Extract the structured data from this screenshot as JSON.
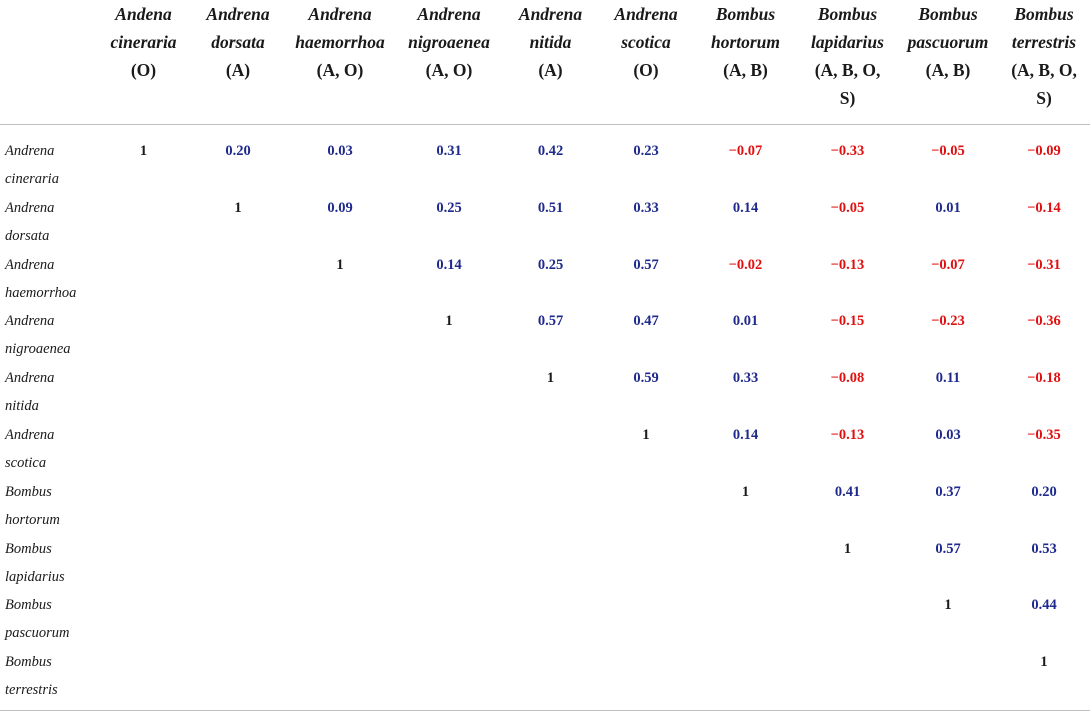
{
  "columns": [
    {
      "name_line1": "Andena",
      "name_line2": "cineraria",
      "codes": "(O)"
    },
    {
      "name_line1": "Andrena",
      "name_line2": "dorsata",
      "codes": "(A)"
    },
    {
      "name_line1": "Andrena",
      "name_line2": "haemorrhoa",
      "codes": "(A, O)"
    },
    {
      "name_line1": "Andrena",
      "name_line2": "nigroaenea",
      "codes": "(A, O)"
    },
    {
      "name_line1": "Andrena",
      "name_line2": "nitida",
      "codes": "(A)"
    },
    {
      "name_line1": "Andrena",
      "name_line2": "scotica",
      "codes": "(O)"
    },
    {
      "name_line1": "Bombus",
      "name_line2": "hortorum",
      "codes": "(A, B)"
    },
    {
      "name_line1": "Bombus",
      "name_line2": "lapidarius",
      "codes": "(A, B, O,",
      "codes2": "S)"
    },
    {
      "name_line1": "Bombus",
      "name_line2": "pascuorum",
      "codes": "(A, B)"
    },
    {
      "name_line1": "Bombus",
      "name_line2": "terrestris",
      "codes": "(A, B, O,",
      "codes2": "S)"
    }
  ],
  "rows": [
    {
      "line1": "Andrena",
      "line2": "cineraria",
      "values": [
        "1",
        "0.20",
        "0.03",
        "0.31",
        "0.42",
        "0.23",
        "−0.07",
        "−0.33",
        "−0.05",
        "−0.09"
      ]
    },
    {
      "line1": "Andrena",
      "line2": "dorsata",
      "values": [
        "",
        "1",
        "0.09",
        "0.25",
        "0.51",
        "0.33",
        "0.14",
        "−0.05",
        "0.01",
        "−0.14"
      ]
    },
    {
      "line1": "Andrena",
      "line2": "haemorrhoa",
      "values": [
        "",
        "",
        "1",
        "0.14",
        "0.25",
        "0.57",
        "−0.02",
        "−0.13",
        "−0.07",
        "−0.31"
      ]
    },
    {
      "line1": "Andrena",
      "line2": "nigroaenea",
      "values": [
        "",
        "",
        "",
        "1",
        "0.57",
        "0.47",
        "0.01",
        "−0.15",
        "−0.23",
        "−0.36"
      ]
    },
    {
      "line1": "Andrena",
      "line2": "nitida",
      "values": [
        "",
        "",
        "",
        "",
        "1",
        "0.59",
        "0.33",
        "−0.08",
        "0.11",
        "−0.18"
      ]
    },
    {
      "line1": "Andrena",
      "line2": "scotica",
      "values": [
        "",
        "",
        "",
        "",
        "",
        "1",
        "0.14",
        "−0.13",
        "0.03",
        "−0.35"
      ]
    },
    {
      "line1": "Bombus",
      "line2": "hortorum",
      "values": [
        "",
        "",
        "",
        "",
        "",
        "",
        "1",
        "0.41",
        "0.37",
        "0.20"
      ]
    },
    {
      "line1": "Bombus",
      "line2": "lapidarius",
      "values": [
        "",
        "",
        "",
        "",
        "",
        "",
        "",
        "1",
        "0.57",
        "0.53"
      ]
    },
    {
      "line1": "Bombus",
      "line2": "pascuorum",
      "values": [
        "",
        "",
        "",
        "",
        "",
        "",
        "",
        "",
        "1",
        "0.44"
      ]
    },
    {
      "line1": "Bombus",
      "line2": "terrestris",
      "values": [
        "",
        "",
        "",
        "",
        "",
        "",
        "",
        "",
        "",
        "1"
      ]
    }
  ],
  "colors": {
    "positive": "#1f2a8c",
    "negative": "#e01010",
    "diagonal": "#1a1a1a",
    "rule": "#bfbfbf"
  }
}
